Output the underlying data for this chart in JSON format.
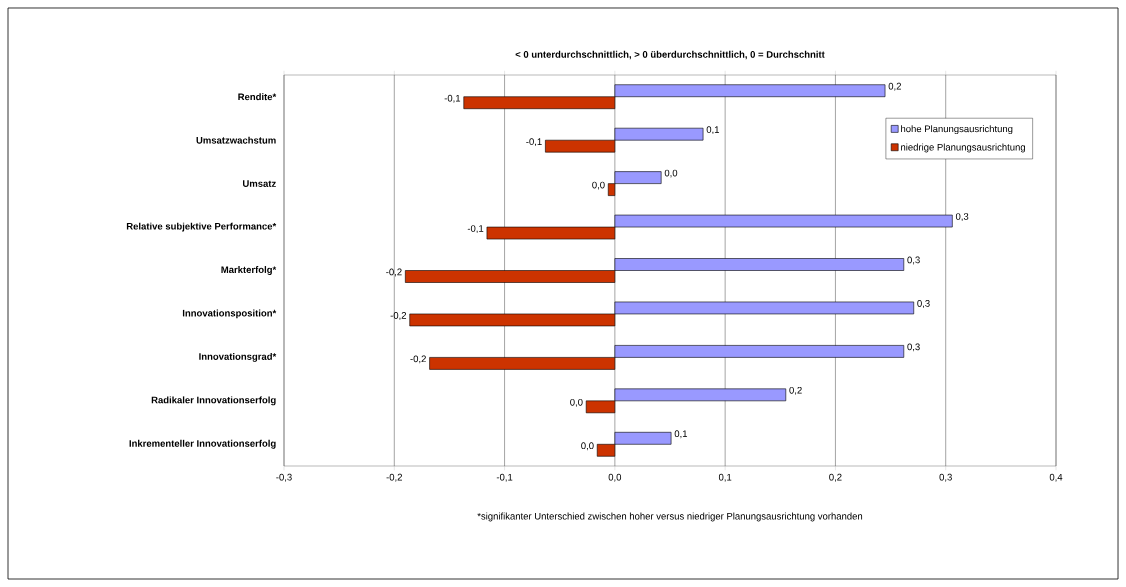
{
  "chart_data": {
    "type": "bar",
    "orientation": "horizontal",
    "title": "< 0 unterdurchschnittlich, > 0 überdurchschnittlich, 0 = Durchschnitt",
    "categories": [
      "Rendite*",
      "Umsatzwachstum",
      "Umsatz",
      "Relative subjektive Performance*",
      "Markterfolg*",
      "Innovationsposition*",
      "Innovationsgrad*",
      "Radikaler Innovationserfolg",
      "Inkrementeller Innovationserfolg"
    ],
    "series": [
      {
        "name": "hohe Planungsausrichtung",
        "color": "#9999ff",
        "values": [
          0.245,
          0.08,
          0.042,
          0.306,
          0.262,
          0.271,
          0.262,
          0.155,
          0.051
        ],
        "value_labels": [
          "0,2",
          "0,1",
          "0,0",
          "0,3",
          "0,3",
          "0,3",
          "0,3",
          "0,2",
          "0,1"
        ]
      },
      {
        "name": "niedrige Planungsausrichtung",
        "color": "#cc3300",
        "values": [
          -0.137,
          -0.063,
          -0.006,
          -0.116,
          -0.19,
          -0.186,
          -0.168,
          -0.026,
          -0.016
        ],
        "value_labels": [
          "-0,1",
          "-0,1",
          "0,0",
          "-0,1",
          "-0,2",
          "-0,2",
          "-0,2",
          "0,0",
          "0,0"
        ]
      }
    ],
    "xlim": [
      -0.3,
      0.4
    ],
    "xticks": [
      {
        "value": -0.3,
        "label": "-0,3"
      },
      {
        "value": -0.2,
        "label": "-0,2"
      },
      {
        "value": -0.1,
        "label": "-0,1"
      },
      {
        "value": 0,
        "label": "0,0"
      },
      {
        "value": 0.1,
        "label": "0,1"
      },
      {
        "value": 0.2,
        "label": "0,2"
      },
      {
        "value": 0.3,
        "label": "0,3"
      },
      {
        "value": 0.4,
        "label": "0,4"
      }
    ],
    "grid": "x",
    "legend": "top right",
    "annotations": [
      "*signifikanter Unterschied zwischen hoher versus niedriger Planungsausrichtung vorhanden"
    ]
  }
}
